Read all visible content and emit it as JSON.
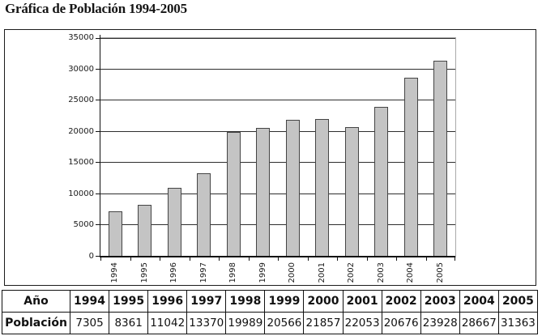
{
  "title": "Gráfica de Población 1994-2005",
  "chart_data": {
    "type": "bar",
    "title": "Gráfica de Población 1994-2005",
    "categories": [
      "1994",
      "1995",
      "1996",
      "1997",
      "1998",
      "1999",
      "2000",
      "2001",
      "2002",
      "2003",
      "2004",
      "2005"
    ],
    "values": [
      7305,
      8361,
      11042,
      13370,
      19989,
      20566,
      21857,
      22053,
      20676,
      23928,
      28667,
      31363
    ],
    "xlabel": "",
    "ylabel": "",
    "ylim": [
      0,
      35000
    ],
    "ytick_step": 5000,
    "ytick_labels": [
      "0",
      "5000",
      "10000",
      "15000",
      "20000",
      "25000",
      "30000",
      "35000"
    ],
    "grid": true,
    "legend": false,
    "bar_color": "#c4c4c4",
    "bar_border_color": "#454545"
  },
  "table": {
    "year_row_label": "Año",
    "population_row_label": "Población"
  }
}
